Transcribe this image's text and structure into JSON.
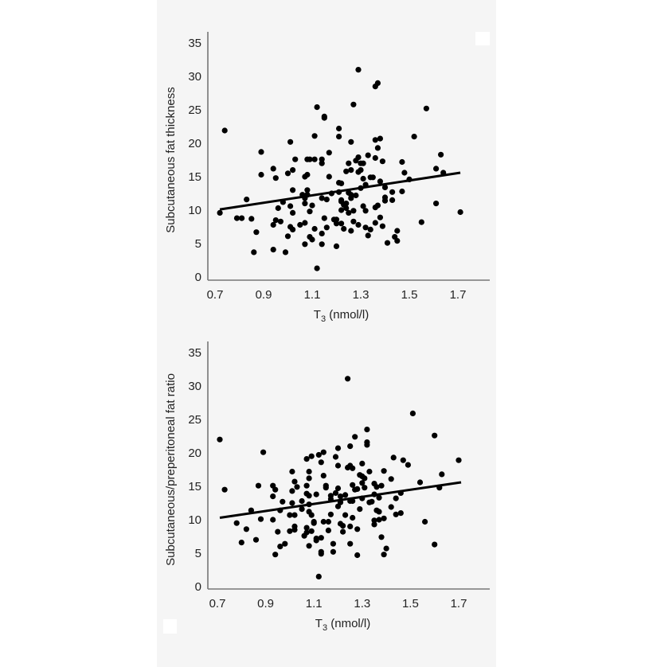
{
  "chart_data": [
    {
      "type": "scatter",
      "title": "",
      "xlabel": "T3 (nmol/l)",
      "xlabel_main": "T",
      "xlabel_sub": "3",
      "xlabel_rest": " (nmol/l)",
      "ylabel": "Subcutaneous fat thickness",
      "xlim": [
        0.7,
        1.82
      ],
      "ylim": [
        0,
        36
      ],
      "xticks": [
        0.7,
        0.9,
        1.1,
        1.3,
        1.5,
        1.7
      ],
      "xtick_labels": [
        "0.7",
        "0.9",
        "1.1",
        "1.3",
        "1.5",
        "1.7"
      ],
      "yticks": [
        0,
        5,
        10,
        15,
        20,
        25,
        30,
        35
      ],
      "ytick_labels": [
        "0",
        "5",
        "10",
        "15",
        "20",
        "25",
        "30",
        "35"
      ],
      "grid": false,
      "regression_line": {
        "x": [
          0.72,
          1.71
        ],
        "y": [
          10.1,
          15.6
        ]
      },
      "points": [
        [
          0.72,
          9.6
        ],
        [
          0.74,
          21.9
        ],
        [
          0.79,
          8.8
        ],
        [
          0.81,
          8.8
        ],
        [
          0.83,
          11.6
        ],
        [
          0.85,
          8.7
        ],
        [
          0.86,
          3.7
        ],
        [
          0.87,
          6.7
        ],
        [
          0.89,
          18.7
        ],
        [
          0.89,
          15.3
        ],
        [
          0.94,
          16.2
        ],
        [
          0.95,
          14.8
        ],
        [
          0.94,
          7.8
        ],
        [
          0.95,
          8.5
        ],
        [
          0.97,
          8.3
        ],
        [
          0.96,
          10.3
        ],
        [
          0.98,
          11.2
        ],
        [
          0.94,
          4.1
        ],
        [
          0.99,
          3.7
        ],
        [
          1.0,
          15.5
        ],
        [
          1.01,
          20.2
        ],
        [
          1.02,
          16.0
        ],
        [
          1.02,
          13.0
        ],
        [
          1.03,
          17.6
        ],
        [
          1.01,
          10.6
        ],
        [
          1.02,
          9.6
        ],
        [
          1.01,
          7.5
        ],
        [
          1.02,
          7.1
        ],
        [
          1.0,
          6.1
        ],
        [
          1.05,
          7.8
        ],
        [
          1.06,
          12.3
        ],
        [
          1.07,
          11.8
        ],
        [
          1.07,
          15.0
        ],
        [
          1.08,
          15.3
        ],
        [
          1.08,
          17.6
        ],
        [
          1.09,
          17.6
        ],
        [
          1.08,
          13.0
        ],
        [
          1.08,
          12.3
        ],
        [
          1.07,
          11.0
        ],
        [
          1.09,
          9.8
        ],
        [
          1.1,
          10.7
        ],
        [
          1.07,
          8.1
        ],
        [
          1.07,
          4.9
        ],
        [
          1.09,
          6.0
        ],
        [
          1.1,
          5.6
        ],
        [
          1.11,
          21.1
        ],
        [
          1.12,
          25.4
        ],
        [
          1.11,
          17.6
        ],
        [
          1.14,
          17.6
        ],
        [
          1.14,
          17.0
        ],
        [
          1.15,
          23.8
        ],
        [
          1.15,
          24.0
        ],
        [
          1.14,
          11.8
        ],
        [
          1.16,
          11.6
        ],
        [
          1.11,
          7.2
        ],
        [
          1.12,
          1.3
        ],
        [
          1.14,
          6.5
        ],
        [
          1.14,
          4.9
        ],
        [
          1.16,
          7.4
        ],
        [
          1.15,
          8.8
        ],
        [
          1.17,
          18.6
        ],
        [
          1.17,
          15.0
        ],
        [
          1.18,
          12.5
        ],
        [
          1.19,
          8.6
        ],
        [
          1.2,
          8.0
        ],
        [
          1.2,
          8.6
        ],
        [
          1.21,
          14.1
        ],
        [
          1.22,
          14.0
        ],
        [
          1.21,
          22.2
        ],
        [
          1.21,
          21.0
        ],
        [
          1.21,
          12.7
        ],
        [
          1.22,
          11.5
        ],
        [
          1.22,
          11.3
        ],
        [
          1.23,
          10.8
        ],
        [
          1.22,
          10.0
        ],
        [
          1.24,
          11.0
        ],
        [
          1.24,
          10.3
        ],
        [
          1.22,
          8.0
        ],
        [
          1.23,
          7.2
        ],
        [
          1.2,
          4.6
        ],
        [
          1.24,
          15.8
        ],
        [
          1.25,
          17.0
        ],
        [
          1.26,
          16.0
        ],
        [
          1.26,
          20.2
        ],
        [
          1.25,
          12.6
        ],
        [
          1.26,
          12.3
        ],
        [
          1.26,
          11.8
        ],
        [
          1.25,
          9.6
        ],
        [
          1.27,
          9.9
        ],
        [
          1.26,
          6.9
        ],
        [
          1.27,
          8.3
        ],
        [
          1.28,
          17.4
        ],
        [
          1.29,
          17.9
        ],
        [
          1.29,
          31.0
        ],
        [
          1.27,
          25.8
        ],
        [
          1.29,
          15.7
        ],
        [
          1.3,
          16.0
        ],
        [
          1.3,
          17.0
        ],
        [
          1.31,
          17.0
        ],
        [
          1.28,
          12.2
        ],
        [
          1.3,
          13.3
        ],
        [
          1.31,
          14.7
        ],
        [
          1.32,
          13.8
        ],
        [
          1.31,
          10.6
        ],
        [
          1.32,
          9.9
        ],
        [
          1.29,
          7.8
        ],
        [
          1.32,
          7.4
        ],
        [
          1.33,
          6.2
        ],
        [
          1.34,
          7.1
        ],
        [
          1.33,
          18.2
        ],
        [
          1.34,
          14.9
        ],
        [
          1.35,
          14.9
        ],
        [
          1.36,
          20.5
        ],
        [
          1.36,
          17.8
        ],
        [
          1.37,
          19.3
        ],
        [
          1.38,
          20.7
        ],
        [
          1.36,
          28.5
        ],
        [
          1.37,
          29.0
        ],
        [
          1.38,
          14.3
        ],
        [
          1.36,
          10.4
        ],
        [
          1.37,
          10.7
        ],
        [
          1.38,
          8.9
        ],
        [
          1.36,
          8.1
        ],
        [
          1.39,
          7.6
        ],
        [
          1.39,
          17.3
        ],
        [
          1.4,
          13.4
        ],
        [
          1.4,
          11.9
        ],
        [
          1.4,
          11.4
        ],
        [
          1.41,
          5.1
        ],
        [
          1.43,
          12.7
        ],
        [
          1.43,
          11.5
        ],
        [
          1.44,
          6.0
        ],
        [
          1.45,
          6.9
        ],
        [
          1.45,
          5.4
        ],
        [
          1.47,
          17.2
        ],
        [
          1.47,
          12.8
        ],
        [
          1.48,
          15.6
        ],
        [
          1.5,
          14.6
        ],
        [
          1.52,
          21.0
        ],
        [
          1.55,
          8.2
        ],
        [
          1.57,
          25.2
        ],
        [
          1.61,
          16.2
        ],
        [
          1.61,
          11.0
        ],
        [
          1.63,
          18.3
        ],
        [
          1.64,
          15.6
        ],
        [
          1.71,
          9.7
        ]
      ]
    },
    {
      "type": "scatter",
      "title": "",
      "xlabel": "T3 (nmol/l)",
      "xlabel_main": "T",
      "xlabel_sub": "3",
      "xlabel_rest": " (nmol/l)",
      "ylabel": "Subcutaneous/preperitoneal fat ratio",
      "xlim": [
        0.7,
        1.82
      ],
      "ylim": [
        0,
        36
      ],
      "xticks": [
        0.7,
        0.9,
        1.1,
        1.3,
        1.5,
        1.7
      ],
      "xtick_labels": [
        "0.7",
        "0.9",
        "1.1",
        "1.3",
        "1.5",
        "1.7"
      ],
      "yticks": [
        0,
        5,
        10,
        15,
        20,
        25,
        30,
        35
      ],
      "ytick_labels": [
        "0",
        "5",
        "10",
        "15",
        "20",
        "25",
        "30",
        "35"
      ],
      "grid": false,
      "regression_line": {
        "x": [
          0.71,
          1.71
        ],
        "y": [
          10.3,
          15.6
        ]
      },
      "points": [
        [
          0.71,
          22.0
        ],
        [
          0.73,
          14.5
        ],
        [
          0.78,
          9.5
        ],
        [
          0.8,
          6.6
        ],
        [
          0.82,
          8.6
        ],
        [
          0.84,
          11.4
        ],
        [
          0.86,
          7.0
        ],
        [
          0.87,
          15.1
        ],
        [
          0.88,
          10.1
        ],
        [
          0.89,
          20.1
        ],
        [
          0.93,
          15.1
        ],
        [
          0.93,
          13.5
        ],
        [
          0.94,
          14.5
        ],
        [
          0.93,
          10.0
        ],
        [
          0.95,
          8.2
        ],
        [
          0.94,
          4.8
        ],
        [
          0.96,
          6.0
        ],
        [
          0.96,
          11.4
        ],
        [
          0.97,
          12.7
        ],
        [
          0.98,
          6.4
        ],
        [
          1.0,
          10.7
        ],
        [
          1.0,
          8.3
        ],
        [
          1.01,
          17.2
        ],
        [
          1.01,
          14.3
        ],
        [
          1.01,
          12.5
        ],
        [
          1.02,
          15.7
        ],
        [
          1.02,
          10.7
        ],
        [
          1.02,
          9.0
        ],
        [
          1.02,
          8.5
        ],
        [
          1.03,
          14.9
        ],
        [
          1.05,
          12.8
        ],
        [
          1.05,
          11.6
        ],
        [
          1.06,
          7.6
        ],
        [
          1.07,
          8.1
        ],
        [
          1.07,
          8.8
        ],
        [
          1.07,
          19.1
        ],
        [
          1.07,
          15.1
        ],
        [
          1.07,
          13.9
        ],
        [
          1.08,
          13.6
        ],
        [
          1.08,
          17.2
        ],
        [
          1.08,
          16.2
        ],
        [
          1.08,
          12.3
        ],
        [
          1.08,
          11.2
        ],
        [
          1.09,
          10.7
        ],
        [
          1.09,
          19.5
        ],
        [
          1.08,
          6.1
        ],
        [
          1.09,
          8.3
        ],
        [
          1.1,
          9.7
        ],
        [
          1.1,
          9.5
        ],
        [
          1.11,
          13.8
        ],
        [
          1.11,
          7.2
        ],
        [
          1.11,
          6.9
        ],
        [
          1.12,
          1.5
        ],
        [
          1.12,
          19.7
        ],
        [
          1.13,
          18.6
        ],
        [
          1.13,
          7.3
        ],
        [
          1.13,
          5.2
        ],
        [
          1.13,
          4.9
        ],
        [
          1.14,
          20.1
        ],
        [
          1.14,
          16.6
        ],
        [
          1.14,
          9.7
        ],
        [
          1.15,
          15.1
        ],
        [
          1.15,
          14.8
        ],
        [
          1.16,
          9.7
        ],
        [
          1.16,
          8.4
        ],
        [
          1.17,
          13.1
        ],
        [
          1.17,
          13.6
        ],
        [
          1.17,
          10.8
        ],
        [
          1.18,
          6.4
        ],
        [
          1.18,
          5.2
        ],
        [
          1.19,
          19.4
        ],
        [
          1.19,
          14.0
        ],
        [
          1.2,
          20.7
        ],
        [
          1.2,
          18.1
        ],
        [
          1.2,
          14.7
        ],
        [
          1.2,
          12.0
        ],
        [
          1.21,
          13.5
        ],
        [
          1.21,
          12.6
        ],
        [
          1.21,
          9.4
        ],
        [
          1.22,
          9.1
        ],
        [
          1.22,
          8.2
        ],
        [
          1.23,
          13.7
        ],
        [
          1.23,
          10.7
        ],
        [
          1.24,
          31.1
        ],
        [
          1.24,
          17.8
        ],
        [
          1.25,
          18.1
        ],
        [
          1.25,
          21.0
        ],
        [
          1.25,
          12.8
        ],
        [
          1.25,
          9.0
        ],
        [
          1.25,
          6.4
        ],
        [
          1.26,
          17.7
        ],
        [
          1.26,
          15.2
        ],
        [
          1.26,
          12.8
        ],
        [
          1.26,
          10.3
        ],
        [
          1.27,
          22.4
        ],
        [
          1.27,
          14.5
        ],
        [
          1.28,
          14.6
        ],
        [
          1.28,
          8.6
        ],
        [
          1.28,
          4.7
        ],
        [
          1.29,
          11.6
        ],
        [
          1.29,
          16.7
        ],
        [
          1.3,
          18.4
        ],
        [
          1.3,
          16.5
        ],
        [
          1.3,
          15.5
        ],
        [
          1.3,
          13.2
        ],
        [
          1.31,
          14.8
        ],
        [
          1.31,
          16.2
        ],
        [
          1.32,
          21.6
        ],
        [
          1.32,
          21.2
        ],
        [
          1.32,
          23.5
        ],
        [
          1.33,
          17.2
        ],
        [
          1.33,
          12.6
        ],
        [
          1.34,
          12.7
        ],
        [
          1.35,
          15.4
        ],
        [
          1.35,
          13.8
        ],
        [
          1.35,
          9.9
        ],
        [
          1.35,
          9.3
        ],
        [
          1.36,
          14.9
        ],
        [
          1.36,
          11.4
        ],
        [
          1.37,
          13.3
        ],
        [
          1.37,
          10.0
        ],
        [
          1.37,
          11.2
        ],
        [
          1.38,
          15.1
        ],
        [
          1.38,
          7.4
        ],
        [
          1.39,
          17.3
        ],
        [
          1.39,
          10.2
        ],
        [
          1.39,
          4.8
        ],
        [
          1.4,
          5.7
        ],
        [
          1.42,
          16.1
        ],
        [
          1.42,
          11.9
        ],
        [
          1.43,
          19.3
        ],
        [
          1.44,
          13.2
        ],
        [
          1.44,
          10.8
        ],
        [
          1.46,
          14.0
        ],
        [
          1.46,
          11.0
        ],
        [
          1.47,
          18.9
        ],
        [
          1.49,
          18.2
        ],
        [
          1.51,
          25.9
        ],
        [
          1.54,
          15.6
        ],
        [
          1.56,
          9.7
        ],
        [
          1.6,
          22.6
        ],
        [
          1.6,
          6.3
        ],
        [
          1.62,
          14.8
        ],
        [
          1.63,
          16.8
        ],
        [
          1.7,
          18.9
        ]
      ]
    }
  ],
  "decorations": {
    "top_right_white_box": true,
    "bottom_left_white_box": true
  },
  "colors": {
    "background": "#f5f5f5",
    "page": "#ffffff",
    "dot": "#000000",
    "axis": "#777777",
    "text": "#222222"
  }
}
